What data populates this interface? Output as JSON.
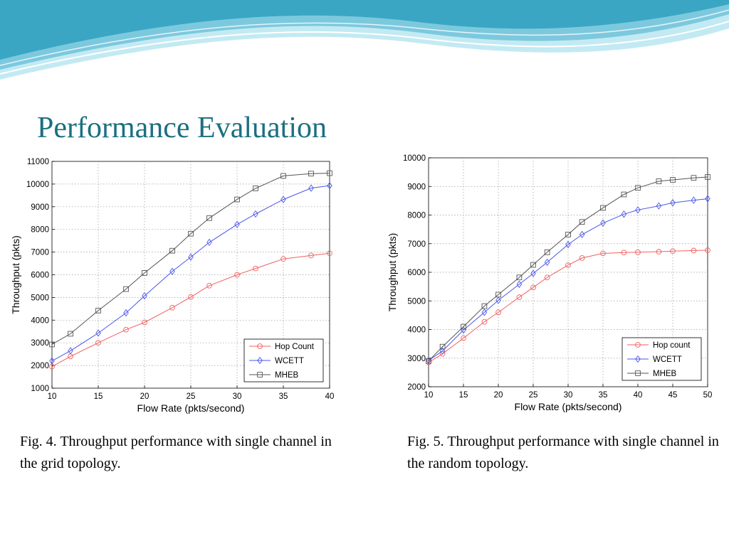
{
  "slide": {
    "title": "Performance Evaluation",
    "colors": {
      "title": "#1b6f80",
      "wave_dark": "#3aa6c4",
      "wave_light": "#bfe8f2"
    }
  },
  "captions": [
    {
      "text": "Fig. 4. Throughput performance with single channel in the grid topology."
    },
    {
      "text": "Fig. 5. Throughput performance with single channel in the random topology."
    }
  ],
  "chart_data": [
    {
      "type": "line",
      "title": "",
      "xlabel": "Flow Rate (pkts/second)",
      "ylabel": "Throughput (pkts)",
      "xlim": [
        10,
        40
      ],
      "ylim": [
        1000,
        11000
      ],
      "xticks": [
        "10",
        "15",
        "20",
        "25",
        "30",
        "35",
        "40"
      ],
      "yticks": [
        "1000",
        "2000",
        "3000",
        "4000",
        "5000",
        "6000",
        "7000",
        "8000",
        "9000",
        "10000",
        "11000"
      ],
      "grid": true,
      "legend_position": "bottom-right",
      "x": [
        10,
        12,
        15,
        18,
        20,
        23,
        25,
        27,
        30,
        32,
        35,
        38,
        40
      ],
      "series": [
        {
          "name": "Hop Count",
          "color": "#f06060",
          "marker": "circle",
          "values": [
            1950,
            2400,
            3000,
            3580,
            3900,
            4550,
            5020,
            5520,
            6000,
            6280,
            6700,
            6850,
            6950
          ]
        },
        {
          "name": "WCETT",
          "color": "#4a56e8",
          "marker": "diamond",
          "values": [
            2200,
            2650,
            3430,
            4320,
            5070,
            6150,
            6780,
            7430,
            8220,
            8680,
            9320,
            9820,
            9930
          ]
        },
        {
          "name": "MHEB",
          "color": "#555555",
          "marker": "square",
          "values": [
            2930,
            3400,
            4420,
            5370,
            6080,
            7060,
            7810,
            8500,
            9320,
            9810,
            10360,
            10460,
            10480
          ]
        }
      ]
    },
    {
      "type": "line",
      "title": "",
      "xlabel": "Flow Rate (pkts/second)",
      "ylabel": "Throughput (pkts)",
      "xlim": [
        10,
        50
      ],
      "ylim": [
        2000,
        10000
      ],
      "xticks": [
        "10",
        "15",
        "20",
        "25",
        "30",
        "35",
        "40",
        "45",
        "50"
      ],
      "yticks": [
        "2000",
        "3000",
        "4000",
        "5000",
        "6000",
        "7000",
        "8000",
        "9000",
        "10000"
      ],
      "grid": true,
      "legend_position": "bottom-right",
      "x": [
        10,
        12,
        15,
        18,
        20,
        23,
        25,
        27,
        30,
        32,
        35,
        38,
        40,
        43,
        45,
        48,
        50
      ],
      "series": [
        {
          "name": "Hop count",
          "color": "#f06060",
          "marker": "circle",
          "values": [
            2850,
            3150,
            3700,
            4270,
            4600,
            5130,
            5470,
            5820,
            6250,
            6500,
            6660,
            6690,
            6700,
            6720,
            6740,
            6760,
            6770
          ]
        },
        {
          "name": "WCETT",
          "color": "#4a56e8",
          "marker": "diamond",
          "values": [
            2920,
            3250,
            3980,
            4600,
            5020,
            5580,
            5960,
            6350,
            6970,
            7320,
            7720,
            8030,
            8180,
            8320,
            8430,
            8520,
            8570
          ]
        },
        {
          "name": "MHEB",
          "color": "#555555",
          "marker": "square",
          "values": [
            2900,
            3400,
            4100,
            4820,
            5220,
            5820,
            6260,
            6700,
            7320,
            7760,
            8250,
            8720,
            8950,
            9180,
            9230,
            9300,
            9330
          ]
        }
      ]
    }
  ]
}
